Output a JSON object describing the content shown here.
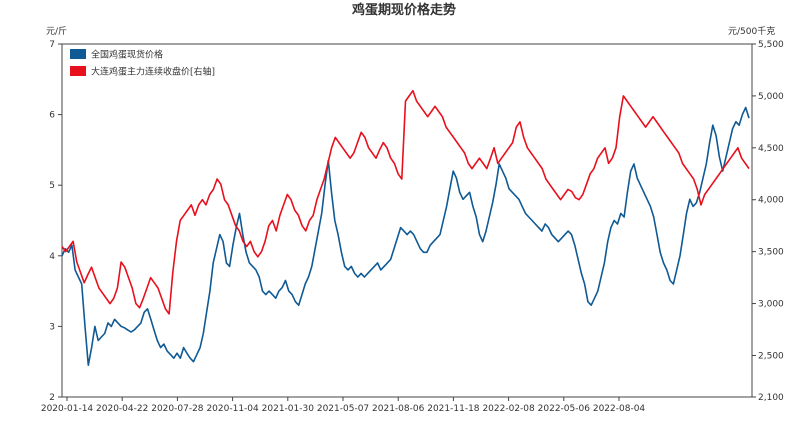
{
  "chart_data": {
    "type": "line",
    "title": "鸡蛋期现价格走势",
    "y_left_unit": "元/斤",
    "y_right_unit": "元/500千克",
    "y_left_ticks": [
      "7",
      "6",
      "5",
      "4",
      "3",
      "2"
    ],
    "y_left_range": [
      2,
      7
    ],
    "y_right_ticks": [
      "5,500",
      "5,000",
      "4,500",
      "4,000",
      "3,500",
      "3,000",
      "2,500",
      "2,100"
    ],
    "y_right_range": [
      2100,
      5500
    ],
    "x_tick_labels": [
      "2020-01-14",
      "2020-04-22",
      "2020-07-28",
      "2020-11-04",
      "2021-01-30",
      "2021-05-07",
      "2021-08-06",
      "2021-11-18",
      "2022-02-08",
      "2022-05-06",
      "2022-08-04"
    ],
    "legend_position": "top-left",
    "grid": false,
    "series": [
      {
        "name": "全国鸡蛋现货价格",
        "axis": "left",
        "color": "#0f5a94",
        "values": [
          4.0,
          4.1,
          4.05,
          4.15,
          3.8,
          3.7,
          3.6,
          3.0,
          2.45,
          2.7,
          3.0,
          2.8,
          2.85,
          2.9,
          3.05,
          3.0,
          3.1,
          3.05,
          3.0,
          2.98,
          2.95,
          2.92,
          2.95,
          3.0,
          3.05,
          3.2,
          3.25,
          3.1,
          2.95,
          2.8,
          2.7,
          2.75,
          2.65,
          2.6,
          2.55,
          2.62,
          2.55,
          2.7,
          2.62,
          2.55,
          2.5,
          2.6,
          2.7,
          2.9,
          3.2,
          3.5,
          3.9,
          4.1,
          4.3,
          4.2,
          3.9,
          3.85,
          4.15,
          4.4,
          4.6,
          4.3,
          4.05,
          3.9,
          3.85,
          3.8,
          3.7,
          3.5,
          3.45,
          3.5,
          3.45,
          3.4,
          3.5,
          3.55,
          3.65,
          3.5,
          3.45,
          3.35,
          3.3,
          3.45,
          3.6,
          3.7,
          3.85,
          4.1,
          4.35,
          4.6,
          5.0,
          5.35,
          4.9,
          4.5,
          4.3,
          4.05,
          3.85,
          3.8,
          3.85,
          3.75,
          3.7,
          3.75,
          3.7,
          3.75,
          3.8,
          3.85,
          3.9,
          3.8,
          3.85,
          3.9,
          3.95,
          4.1,
          4.25,
          4.4,
          4.35,
          4.3,
          4.35,
          4.3,
          4.2,
          4.1,
          4.05,
          4.05,
          4.15,
          4.2,
          4.25,
          4.3,
          4.5,
          4.7,
          4.95,
          5.2,
          5.1,
          4.9,
          4.8,
          4.85,
          4.9,
          4.7,
          4.55,
          4.3,
          4.2,
          4.35,
          4.55,
          4.75,
          5.0,
          5.3,
          5.2,
          5.1,
          4.95,
          4.9,
          4.85,
          4.8,
          4.7,
          4.6,
          4.55,
          4.5,
          4.45,
          4.4,
          4.35,
          4.45,
          4.4,
          4.3,
          4.25,
          4.2,
          4.25,
          4.3,
          4.35,
          4.3,
          4.15,
          3.95,
          3.75,
          3.6,
          3.35,
          3.3,
          3.4,
          3.5,
          3.7,
          3.9,
          4.2,
          4.4,
          4.5,
          4.45,
          4.6,
          4.55,
          4.9,
          5.2,
          5.3,
          5.1,
          5.0,
          4.9,
          4.8,
          4.7,
          4.55,
          4.3,
          4.05,
          3.9,
          3.8,
          3.65,
          3.6,
          3.8,
          4.0,
          4.3,
          4.6,
          4.8,
          4.7,
          4.75,
          4.9,
          5.1,
          5.3,
          5.6,
          5.85,
          5.7,
          5.4,
          5.2,
          5.4,
          5.6,
          5.8,
          5.9,
          5.85,
          6.0,
          6.1,
          5.95
        ]
      },
      {
        "name": "大连鸡蛋主力连续收盘价[右轴]",
        "axis": "right",
        "color": "#e8101c",
        "values": [
          3550,
          3500,
          3550,
          3600,
          3400,
          3300,
          3200,
          3280,
          3350,
          3250,
          3150,
          3100,
          3050,
          3000,
          3050,
          3150,
          3400,
          3350,
          3250,
          3150,
          3000,
          2960,
          3050,
          3150,
          3250,
          3200,
          3150,
          3050,
          2950,
          2900,
          3300,
          3600,
          3800,
          3850,
          3900,
          3950,
          3850,
          3950,
          4000,
          3950,
          4050,
          4100,
          4200,
          4150,
          4000,
          3950,
          3850,
          3750,
          3700,
          3600,
          3550,
          3600,
          3500,
          3450,
          3500,
          3600,
          3750,
          3800,
          3700,
          3850,
          3950,
          4050,
          4000,
          3900,
          3850,
          3750,
          3700,
          3800,
          3850,
          4000,
          4100,
          4200,
          4350,
          4500,
          4600,
          4550,
          4500,
          4450,
          4400,
          4450,
          4550,
          4650,
          4600,
          4500,
          4450,
          4400,
          4480,
          4550,
          4500,
          4400,
          4350,
          4250,
          4200,
          4950,
          5000,
          5050,
          4950,
          4900,
          4850,
          4800,
          4850,
          4900,
          4850,
          4800,
          4700,
          4650,
          4600,
          4550,
          4500,
          4450,
          4350,
          4300,
          4350,
          4400,
          4350,
          4300,
          4400,
          4500,
          4350,
          4400,
          4450,
          4500,
          4550,
          4700,
          4750,
          4600,
          4500,
          4450,
          4400,
          4350,
          4300,
          4200,
          4150,
          4100,
          4050,
          4000,
          4050,
          4100,
          4080,
          4020,
          4000,
          4050,
          4150,
          4250,
          4300,
          4400,
          4450,
          4500,
          4350,
          4400,
          4500,
          4800,
          5000,
          4950,
          4900,
          4850,
          4800,
          4750,
          4700,
          4750,
          4800,
          4750,
          4700,
          4650,
          4600,
          4550,
          4500,
          4450,
          4350,
          4300,
          4250,
          4200,
          4100,
          3950,
          4050,
          4100,
          4150,
          4200,
          4250,
          4300,
          4350,
          4400,
          4450,
          4500,
          4400,
          4350,
          4300
        ]
      }
    ]
  }
}
